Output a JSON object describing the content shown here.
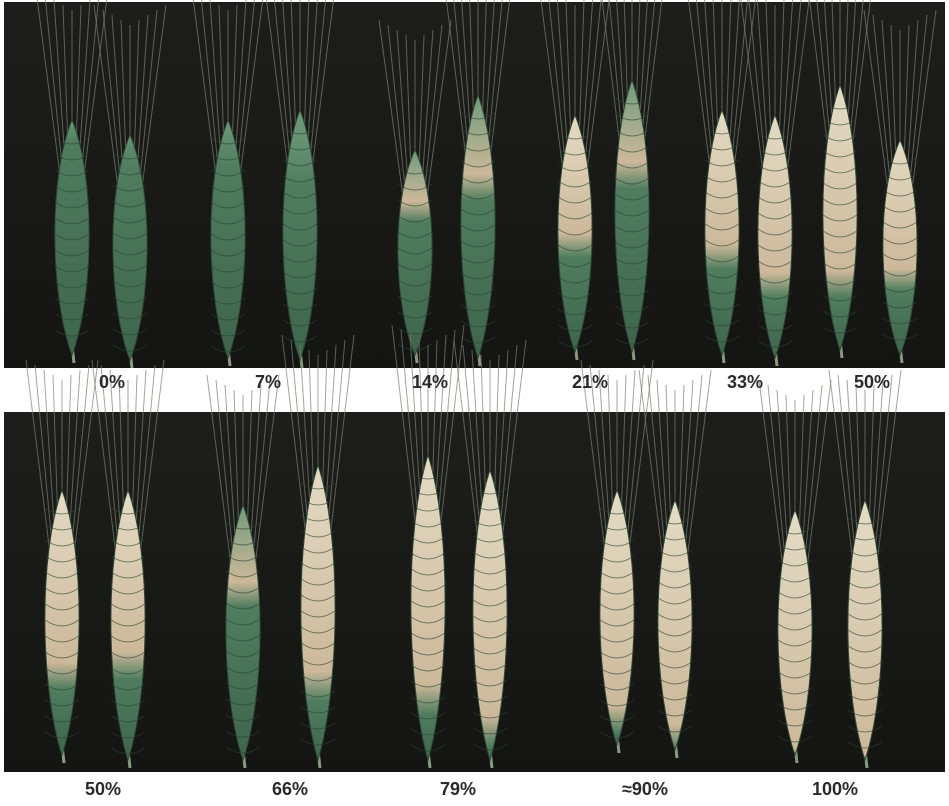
{
  "panels": [
    {
      "labels": [
        "0%",
        "7%",
        "14%",
        "21%",
        "33%",
        "50%"
      ]
    },
    {
      "labels": [
        "50%",
        "66%",
        "79%",
        "≈90%",
        "100%"
      ]
    }
  ]
}
